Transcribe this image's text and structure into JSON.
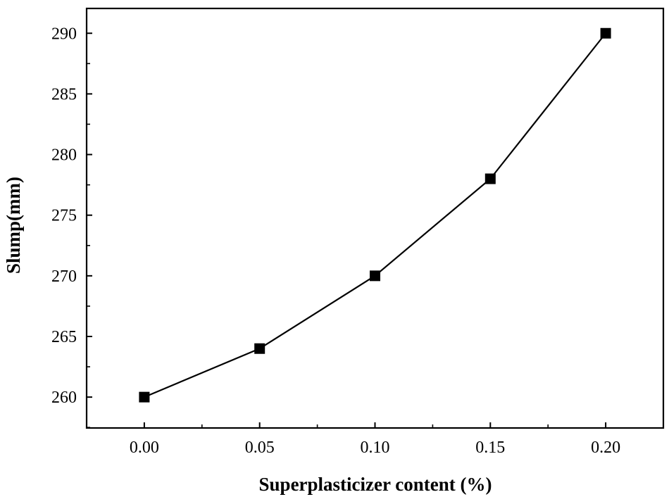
{
  "chart_data": {
    "type": "line",
    "title": "",
    "xlabel": "Superplasticizer content (%)",
    "ylabel": "Slump(mm)",
    "xlim": [
      -0.025,
      0.225
    ],
    "ylim": [
      257.454,
      292.046
    ],
    "x_ticks": [
      "0.00",
      "0.05",
      "0.10",
      "0.15",
      "0.20"
    ],
    "y_ticks": [
      "260",
      "265",
      "270",
      "275",
      "280",
      "285",
      "290"
    ],
    "grid": false,
    "marker": "square",
    "colors": {
      "line": "#000000",
      "marker": "#000000",
      "axes": "#000000"
    },
    "series": [
      {
        "x": [
          0.0,
          0.05,
          0.1,
          0.15,
          0.2
        ],
        "y": [
          260,
          264,
          270,
          278,
          290
        ]
      }
    ]
  }
}
